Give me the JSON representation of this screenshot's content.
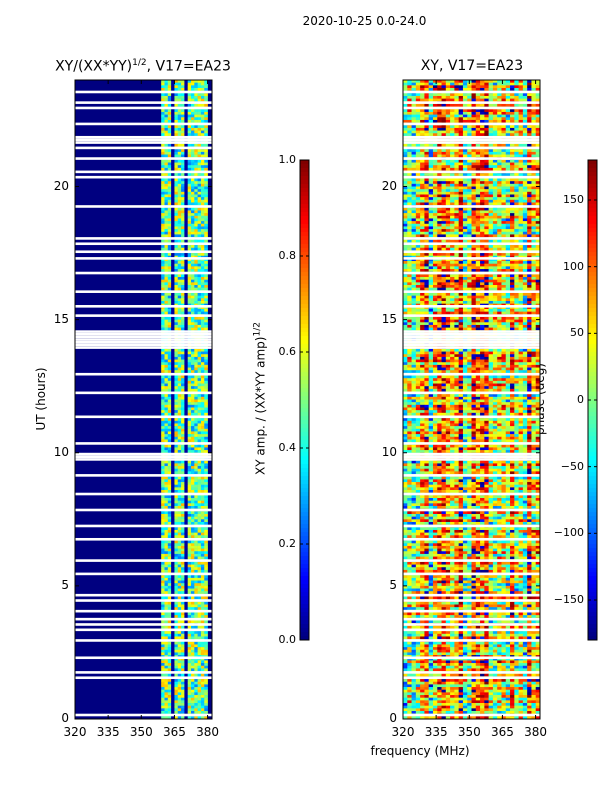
{
  "suptitle": "2020-10-25 0.0-24.0",
  "colors": {
    "jet_dark_blue": "#00007f",
    "jet_dark_red": "#7f0000"
  },
  "chart_data": [
    {
      "type": "heatmap",
      "title_base": "XY/(XX*YY)",
      "title_sup": "1/2",
      "title_tail": ", V17=EA23",
      "xlabel": "",
      "ylabel": "UT (hours)",
      "xlim": [
        320,
        382
      ],
      "ylim": [
        0,
        24
      ],
      "xticks": [
        320,
        335,
        350,
        365,
        380
      ],
      "yticks": [
        0,
        5,
        10,
        15,
        20
      ],
      "quantity": "XY amplitude normalized",
      "value_range": [
        0.0,
        1.0
      ],
      "signal_band_mhz": [
        359,
        380
      ],
      "background_value": 0.0,
      "colorbar": {
        "label_base": "XY amp. / (XX*YY amp)",
        "label_sup": "1/2",
        "range": [
          0.0,
          1.0
        ],
        "ticks": [
          0.0,
          0.2,
          0.4,
          0.6,
          0.8,
          1.0
        ],
        "tick_labels": [
          "0.0",
          "0.2",
          "0.4",
          "0.6",
          "0.8",
          "1.0"
        ],
        "colormap": "jet"
      },
      "flagged_ut_hours": [
        0.15,
        1.55,
        1.75,
        2.3,
        2.95,
        3.35,
        3.55,
        3.75,
        4.05,
        4.45,
        4.65,
        5.45,
        5.95,
        6.75,
        7.25,
        7.85,
        8.45,
        9.15,
        9.75,
        9.85,
        9.95,
        10.35,
        11.35,
        12.25,
        12.95,
        13.95,
        14.05,
        14.15,
        14.25,
        14.35,
        14.45,
        14.55,
        15.15,
        15.5,
        16.05,
        16.75,
        17.3,
        17.55,
        17.85,
        18.05,
        19.25,
        20.35,
        20.55,
        21.05,
        21.45,
        21.65,
        21.75,
        21.85,
        22.35,
        22.95,
        23.15,
        23.55
      ]
    },
    {
      "type": "heatmap",
      "title_base": "XY, V17=EA23",
      "xlabel": "frequency (MHz)",
      "ylabel": "",
      "xlim": [
        320,
        382
      ],
      "ylim": [
        0,
        24
      ],
      "xticks": [
        320,
        335,
        350,
        365,
        380
      ],
      "yticks": [
        0,
        5,
        10,
        15,
        20
      ],
      "quantity": "XY phase",
      "value_range": [
        -180,
        180
      ],
      "colorbar": {
        "label_base": "phase (deg)",
        "range": [
          -180,
          180
        ],
        "ticks": [
          -150,
          -100,
          -50,
          0,
          50,
          100,
          150
        ],
        "tick_labels": [
          "−150",
          "−100",
          "−50",
          "0",
          "50",
          "100",
          "150"
        ],
        "colormap": "jet"
      },
      "flagged_ut_hours": [
        0.15,
        1.55,
        1.75,
        2.3,
        2.95,
        3.35,
        3.55,
        3.75,
        4.05,
        4.45,
        4.65,
        5.45,
        5.95,
        6.75,
        7.25,
        7.85,
        8.45,
        9.15,
        9.75,
        9.85,
        9.95,
        10.35,
        11.35,
        12.25,
        12.95,
        13.95,
        14.05,
        14.15,
        14.25,
        14.35,
        14.45,
        14.55,
        15.15,
        15.5,
        16.05,
        16.75,
        17.3,
        17.55,
        17.85,
        18.05,
        19.25,
        20.35,
        20.55,
        21.05,
        21.45,
        21.65,
        21.75,
        21.85,
        22.35,
        22.95,
        23.15,
        23.55
      ]
    }
  ]
}
